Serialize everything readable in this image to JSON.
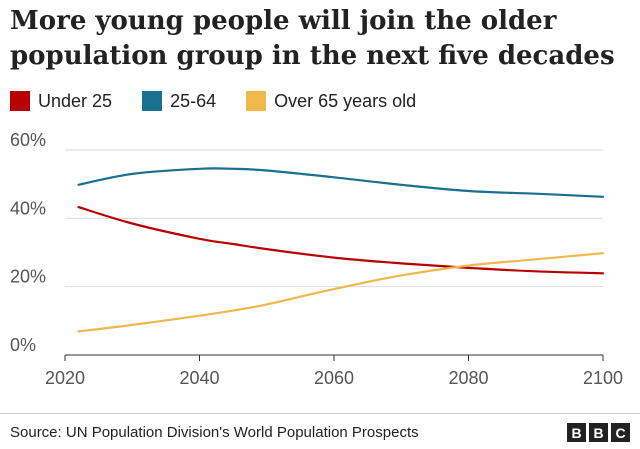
{
  "chart_data": {
    "type": "line",
    "title": "More young people will join the older population group in the next five decades",
    "x": [
      2022,
      2030,
      2040,
      2045,
      2050,
      2060,
      2070,
      2080,
      2090,
      2100
    ],
    "series": [
      {
        "name": "Under 25",
        "color": "#b80000",
        "values": [
          43.3,
          38.5,
          34.0,
          32.5,
          31.0,
          28.5,
          26.8,
          25.5,
          24.5,
          23.9
        ]
      },
      {
        "name": "25-64",
        "color": "#1a7091",
        "values": [
          49.8,
          53.0,
          54.5,
          54.5,
          54.0,
          52.0,
          49.8,
          48.0,
          47.2,
          46.3
        ]
      },
      {
        "name": "Over 65 years old",
        "color": "#eeb84c",
        "values": [
          6.9,
          8.8,
          11.5,
          13.0,
          14.8,
          19.3,
          23.3,
          26.2,
          28.0,
          29.8
        ]
      }
    ],
    "xticks": [
      "2020",
      "2040",
      "2060",
      "2080",
      "2100"
    ],
    "yticks": [
      "0%",
      "20%",
      "40%",
      "60%"
    ],
    "xlim": [
      2020,
      2100
    ],
    "ylim": [
      0,
      60
    ],
    "xlabel": "",
    "ylabel": "",
    "grid": "horizontal",
    "legend": "top-left"
  },
  "source": "Source: UN Population Division's World Population Prospects",
  "logo": [
    "B",
    "B",
    "C"
  ]
}
